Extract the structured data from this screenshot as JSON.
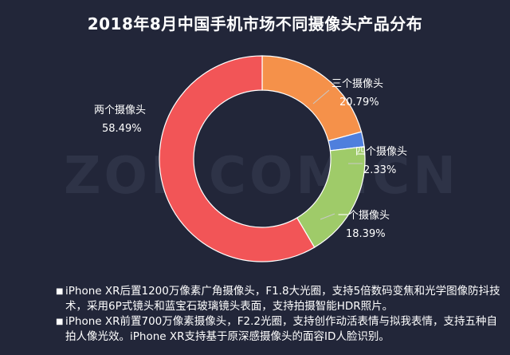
{
  "watermark": "ZOL.COM.CN",
  "chart_data": {
    "type": "pie",
    "title": "2018年8月中国手机市场不同摄像头产品分布",
    "slices": [
      {
        "name": "三个摄像头",
        "value": 20.79,
        "value_label": "20.79%",
        "color": "#f5914a"
      },
      {
        "name": "四个摄像头",
        "value": 2.33,
        "value_label": "2.33%",
        "color": "#4f7fdd"
      },
      {
        "name": "一个摄像头",
        "value": 18.39,
        "value_label": "18.39%",
        "color": "#9fcb69"
      },
      {
        "name": "两个摄像头",
        "value": 58.49,
        "value_label": "58.49%",
        "color": "#f25557"
      }
    ],
    "donut": true,
    "legend": "none"
  },
  "notes": [
    "iPhone XR后置1200万像素广角摄像头，F1.8大光圈，支持5倍数码变焦和光学图像防抖技术，采用6P式镜头和蓝宝石玻璃镜头表面，支持拍摄智能HDR照片。",
    "iPhone XR前置700万像素摄像头，F2.2光圈，支持创作动活表情与拟我表情，支持五种自拍人像光效。iPhone XR支持基于原深感摄像头的面容ID人脸识别。"
  ]
}
